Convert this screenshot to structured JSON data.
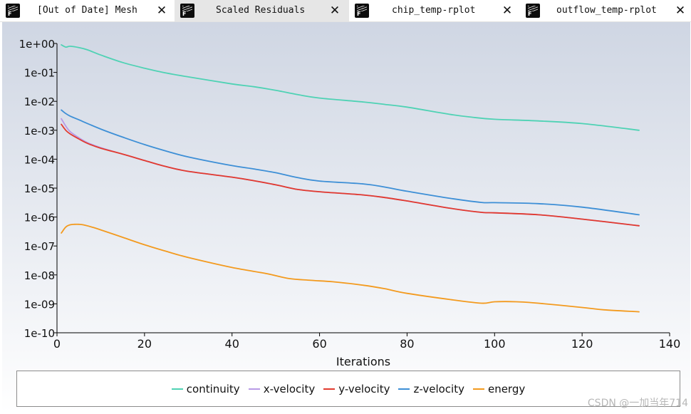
{
  "tabs": [
    {
      "label": "[Out of Date] Mesh",
      "active": false
    },
    {
      "label": "Scaled Residuals",
      "active": true
    },
    {
      "label": "chip_temp-rplot",
      "active": false
    },
    {
      "label": "outflow_temp-rplot",
      "active": false
    }
  ],
  "tab_icon_letter": "F",
  "tab_close_glyph": "✕",
  "watermark": "CSDN @一加当年714",
  "colors": {
    "continuity": "#4fd2b4",
    "x-velocity": "#b89ae6",
    "y-velocity": "#e23a2e",
    "z-velocity": "#3d8fd6",
    "energy": "#f39a1e",
    "axis": "#000000"
  },
  "chart_data": {
    "type": "line",
    "title": "Scaled Residuals",
    "xlabel": "Iterations",
    "ylabel": "",
    "xscale": "linear",
    "yscale": "log",
    "xlim": [
      0,
      140
    ],
    "ylim": [
      1e-10,
      1
    ],
    "xticks": [
      0,
      20,
      40,
      60,
      80,
      100,
      120,
      140
    ],
    "xtick_labels": [
      "0",
      "20",
      "40",
      "60",
      "80",
      "100",
      "120",
      "140"
    ],
    "yticks": [
      1,
      0.1,
      0.01,
      0.001,
      0.0001,
      1e-05,
      1e-06,
      1e-07,
      1e-08,
      1e-09,
      1e-10
    ],
    "ytick_labels": [
      "1e+00",
      "1e-01",
      "1e-02",
      "1e-03",
      "1e-04",
      "1e-05",
      "1e-06",
      "1e-07",
      "1e-08",
      "1e-09",
      "1e-10"
    ],
    "grid": false,
    "legend_position": "bottom",
    "series": [
      {
        "name": "continuity",
        "x": [
          1,
          2,
          3,
          5,
          7,
          10,
          15,
          20,
          25,
          30,
          40,
          45,
          50,
          55,
          60,
          70,
          75,
          80,
          90,
          95,
          100,
          110,
          120,
          133
        ],
        "y": [
          0.9,
          0.75,
          0.8,
          0.72,
          0.6,
          0.4,
          0.22,
          0.14,
          0.095,
          0.07,
          0.04,
          0.032,
          0.024,
          0.017,
          0.013,
          0.0095,
          0.0078,
          0.0063,
          0.0035,
          0.0028,
          0.0024,
          0.0021,
          0.0017,
          0.001
        ]
      },
      {
        "name": "x-velocity",
        "x": [
          1,
          2,
          3,
          5,
          7,
          10,
          15,
          20,
          25,
          30,
          40,
          45,
          50,
          55,
          60,
          70,
          75,
          80,
          90,
          97,
          100,
          110,
          120,
          133
        ],
        "y": [
          0.0025,
          0.0014,
          0.0009,
          0.00055,
          0.00037,
          0.00025,
          0.00015,
          9e-05,
          5.5e-05,
          3.8e-05,
          2.4e-05,
          1.8e-05,
          1.3e-05,
          9e-06,
          7.5e-06,
          5.8e-06,
          4.7e-06,
          3.6e-06,
          2e-06,
          1.45e-06,
          1.4e-06,
          1.2e-06,
          8.5e-07,
          5e-07
        ]
      },
      {
        "name": "y-velocity",
        "x": [
          1,
          2,
          3,
          5,
          7,
          10,
          15,
          20,
          25,
          30,
          40,
          45,
          50,
          55,
          60,
          70,
          75,
          80,
          90,
          97,
          100,
          110,
          120,
          133
        ],
        "y": [
          0.0016,
          0.001,
          0.00075,
          0.0005,
          0.00035,
          0.00024,
          0.00015,
          9e-05,
          5.5e-05,
          3.8e-05,
          2.4e-05,
          1.8e-05,
          1.3e-05,
          9e-06,
          7.5e-06,
          5.8e-06,
          4.7e-06,
          3.6e-06,
          2e-06,
          1.45e-06,
          1.4e-06,
          1.2e-06,
          8.5e-07,
          5e-07
        ]
      },
      {
        "name": "z-velocity",
        "x": [
          1,
          2,
          3,
          5,
          10,
          15,
          20,
          25,
          30,
          40,
          45,
          50,
          55,
          60,
          70,
          75,
          80,
          90,
          97,
          100,
          110,
          120,
          133
        ],
        "y": [
          0.005,
          0.0038,
          0.0031,
          0.0023,
          0.0011,
          0.00058,
          0.00032,
          0.00019,
          0.00012,
          6e-05,
          4.6e-05,
          3.4e-05,
          2.3e-05,
          1.75e-05,
          1.4e-05,
          1.08e-05,
          7.8e-06,
          4.4e-06,
          3.2e-06,
          3.15e-06,
          2.9e-06,
          2.2e-06,
          1.2e-06
        ]
      },
      {
        "name": "energy",
        "x": [
          1,
          2,
          3,
          4,
          5,
          6,
          8,
          10,
          15,
          20,
          25,
          30,
          40,
          48,
          53,
          58,
          63,
          70,
          75,
          80,
          90,
          97,
          100,
          105,
          110,
          120,
          125,
          133
        ],
        "y": [
          2.8e-07,
          4.5e-07,
          5.4e-07,
          5.6e-07,
          5.6e-07,
          5.4e-07,
          4.5e-07,
          3.6e-07,
          2e-07,
          1.1e-07,
          6.5e-08,
          4e-08,
          1.8e-08,
          1.1e-08,
          7.5e-09,
          6.5e-09,
          5.8e-09,
          4.4e-09,
          3.3e-09,
          2.3e-09,
          1.4e-09,
          1.05e-09,
          1.18e-09,
          1.18e-09,
          1.05e-09,
          7.5e-10,
          6.2e-10,
          5.3e-10
        ]
      }
    ]
  }
}
